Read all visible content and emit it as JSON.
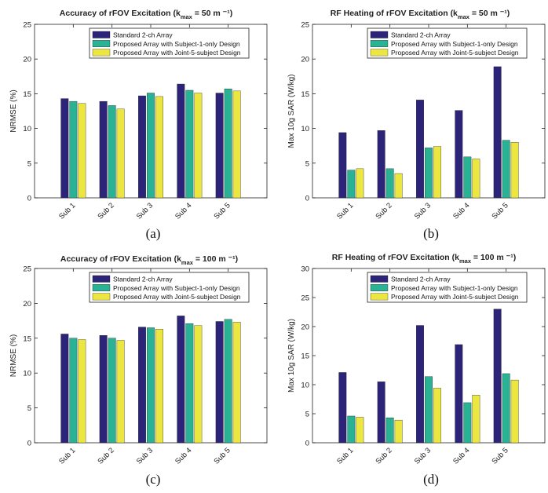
{
  "legend": {
    "standard": "Standard 2-ch Array",
    "subject1": "Proposed Array with Subject-1-only Design",
    "joint5": "Proposed Array with Joint-5-subject Design"
  },
  "colors": {
    "standard": "#2c2479",
    "subject1": "#29b394",
    "joint5": "#ebe640",
    "axis": "#222222",
    "background": "#ffffff"
  },
  "chart_data": [
    {
      "type": "bar",
      "panel": "(a)",
      "title_pre": "Accuracy of rFOV Excitation (k",
      "title_sub": "max",
      "title_post": " = 50 m ⁻¹)",
      "xlabel": "",
      "ylabel": "NRMSE (%)",
      "ylim": [
        0,
        25
      ],
      "yticks": [
        0,
        5,
        10,
        15,
        20,
        25
      ],
      "categories": [
        "Sub 1",
        "Sub 2",
        "Sub 3",
        "Sub 4",
        "Sub 5"
      ],
      "series": [
        {
          "name": "Standard 2-ch Array",
          "values": [
            14.3,
            13.9,
            14.7,
            16.4,
            15.1
          ]
        },
        {
          "name": "Proposed Array with Subject-1-only Design",
          "values": [
            13.9,
            13.3,
            15.1,
            15.5,
            15.7
          ]
        },
        {
          "name": "Proposed Array with Joint-5-subject Design",
          "values": [
            13.6,
            12.8,
            14.6,
            15.1,
            15.4
          ]
        }
      ],
      "legend_position": "top-right"
    },
    {
      "type": "bar",
      "panel": "(b)",
      "title_pre": "RF Heating of rFOV Excitation (k",
      "title_sub": "max",
      "title_post": " = 50 m ⁻¹)",
      "xlabel": "",
      "ylabel": "Max 10g SAR (W/kg)",
      "ylim": [
        0,
        25
      ],
      "yticks": [
        0,
        5,
        10,
        15,
        20,
        25
      ],
      "categories": [
        "Sub 1",
        "Sub 2",
        "Sub 3",
        "Sub 4",
        "Sub 5"
      ],
      "series": [
        {
          "name": "Standard 2-ch Array",
          "values": [
            9.4,
            9.7,
            14.1,
            12.6,
            18.9
          ]
        },
        {
          "name": "Proposed Array with Subject-1-only Design",
          "values": [
            4.0,
            4.2,
            7.2,
            5.9,
            8.3
          ]
        },
        {
          "name": "Proposed Array with Joint-5-subject Design",
          "values": [
            4.2,
            3.5,
            7.4,
            5.6,
            8.0
          ]
        }
      ],
      "legend_position": "top-right"
    },
    {
      "type": "bar",
      "panel": "(c)",
      "title_pre": "Accuracy of rFOV Excitation (k",
      "title_sub": "max",
      "title_post": " = 100 m ⁻¹)",
      "xlabel": "",
      "ylabel": "NRMSE (%)",
      "ylim": [
        0,
        25
      ],
      "yticks": [
        0,
        5,
        10,
        15,
        20,
        25
      ],
      "categories": [
        "Sub 1",
        "Sub 2",
        "Sub 3",
        "Sub 4",
        "Sub 5"
      ],
      "series": [
        {
          "name": "Standard 2-ch Array",
          "values": [
            15.6,
            15.4,
            16.6,
            18.2,
            17.4
          ]
        },
        {
          "name": "Proposed Array with Subject-1-only Design",
          "values": [
            15.0,
            15.0,
            16.5,
            17.1,
            17.7
          ]
        },
        {
          "name": "Proposed Array with Joint-5-subject Design",
          "values": [
            14.8,
            14.7,
            16.3,
            16.8,
            17.3
          ]
        }
      ],
      "legend_position": "top-right"
    },
    {
      "type": "bar",
      "panel": "(d)",
      "title_pre": "RF Heating of rFOV Excitation (k",
      "title_sub": "max",
      "title_post": " = 100 m ⁻¹)",
      "xlabel": "",
      "ylabel": "Max 10g SAR (W/kg)",
      "ylim": [
        0,
        30
      ],
      "yticks": [
        0,
        5,
        10,
        15,
        20,
        25,
        30
      ],
      "categories": [
        "Sub 1",
        "Sub 2",
        "Sub 3",
        "Sub 4",
        "Sub 5"
      ],
      "series": [
        {
          "name": "Standard 2-ch Array",
          "values": [
            12.1,
            10.5,
            20.2,
            16.9,
            23.0
          ]
        },
        {
          "name": "Proposed Array with Subject-1-only Design",
          "values": [
            4.6,
            4.3,
            11.4,
            6.9,
            11.9
          ]
        },
        {
          "name": "Proposed Array with Joint-5-subject Design",
          "values": [
            4.4,
            3.9,
            9.4,
            8.2,
            10.8
          ]
        }
      ],
      "legend_position": "top-right"
    }
  ]
}
